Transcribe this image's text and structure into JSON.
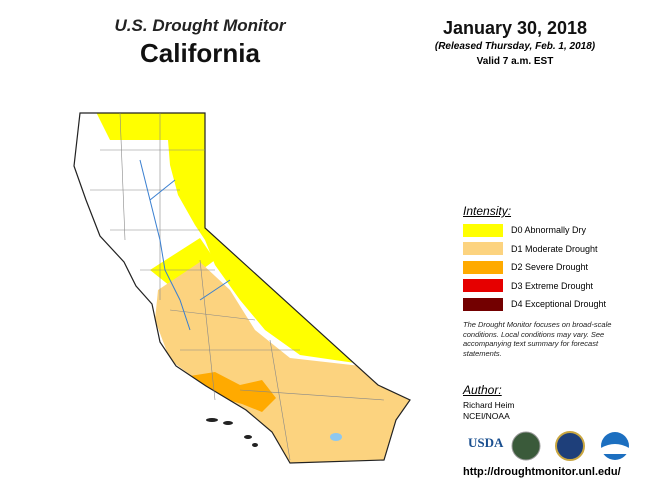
{
  "header": {
    "title": "U.S. Drought Monitor",
    "region": "California",
    "date": "January 30, 2018",
    "released": "(Released Thursday, Feb. 1, 2018)",
    "valid": "Valid 7 a.m. EST"
  },
  "legend": {
    "title": "Intensity:",
    "items": [
      {
        "label": "D0 Abnormally Dry",
        "color": "#ffff00"
      },
      {
        "label": "D1 Moderate Drought",
        "color": "#fcd37f"
      },
      {
        "label": "D2 Severe Drought",
        "color": "#ffaa00"
      },
      {
        "label": "D3 Extreme Drought",
        "color": "#e60000"
      },
      {
        "label": "D4 Exceptional Drought",
        "color": "#730000"
      }
    ]
  },
  "note": "The Drought Monitor focuses on broad-scale conditions. Local conditions may vary. See accompanying text summary for forecast statements.",
  "author": {
    "title": "Author:",
    "name": "Richard Heim",
    "org": "NCEI/NOAA"
  },
  "logos": {
    "usda": "USDA"
  },
  "url": "http://droughtmonitor.unl.edu/"
}
